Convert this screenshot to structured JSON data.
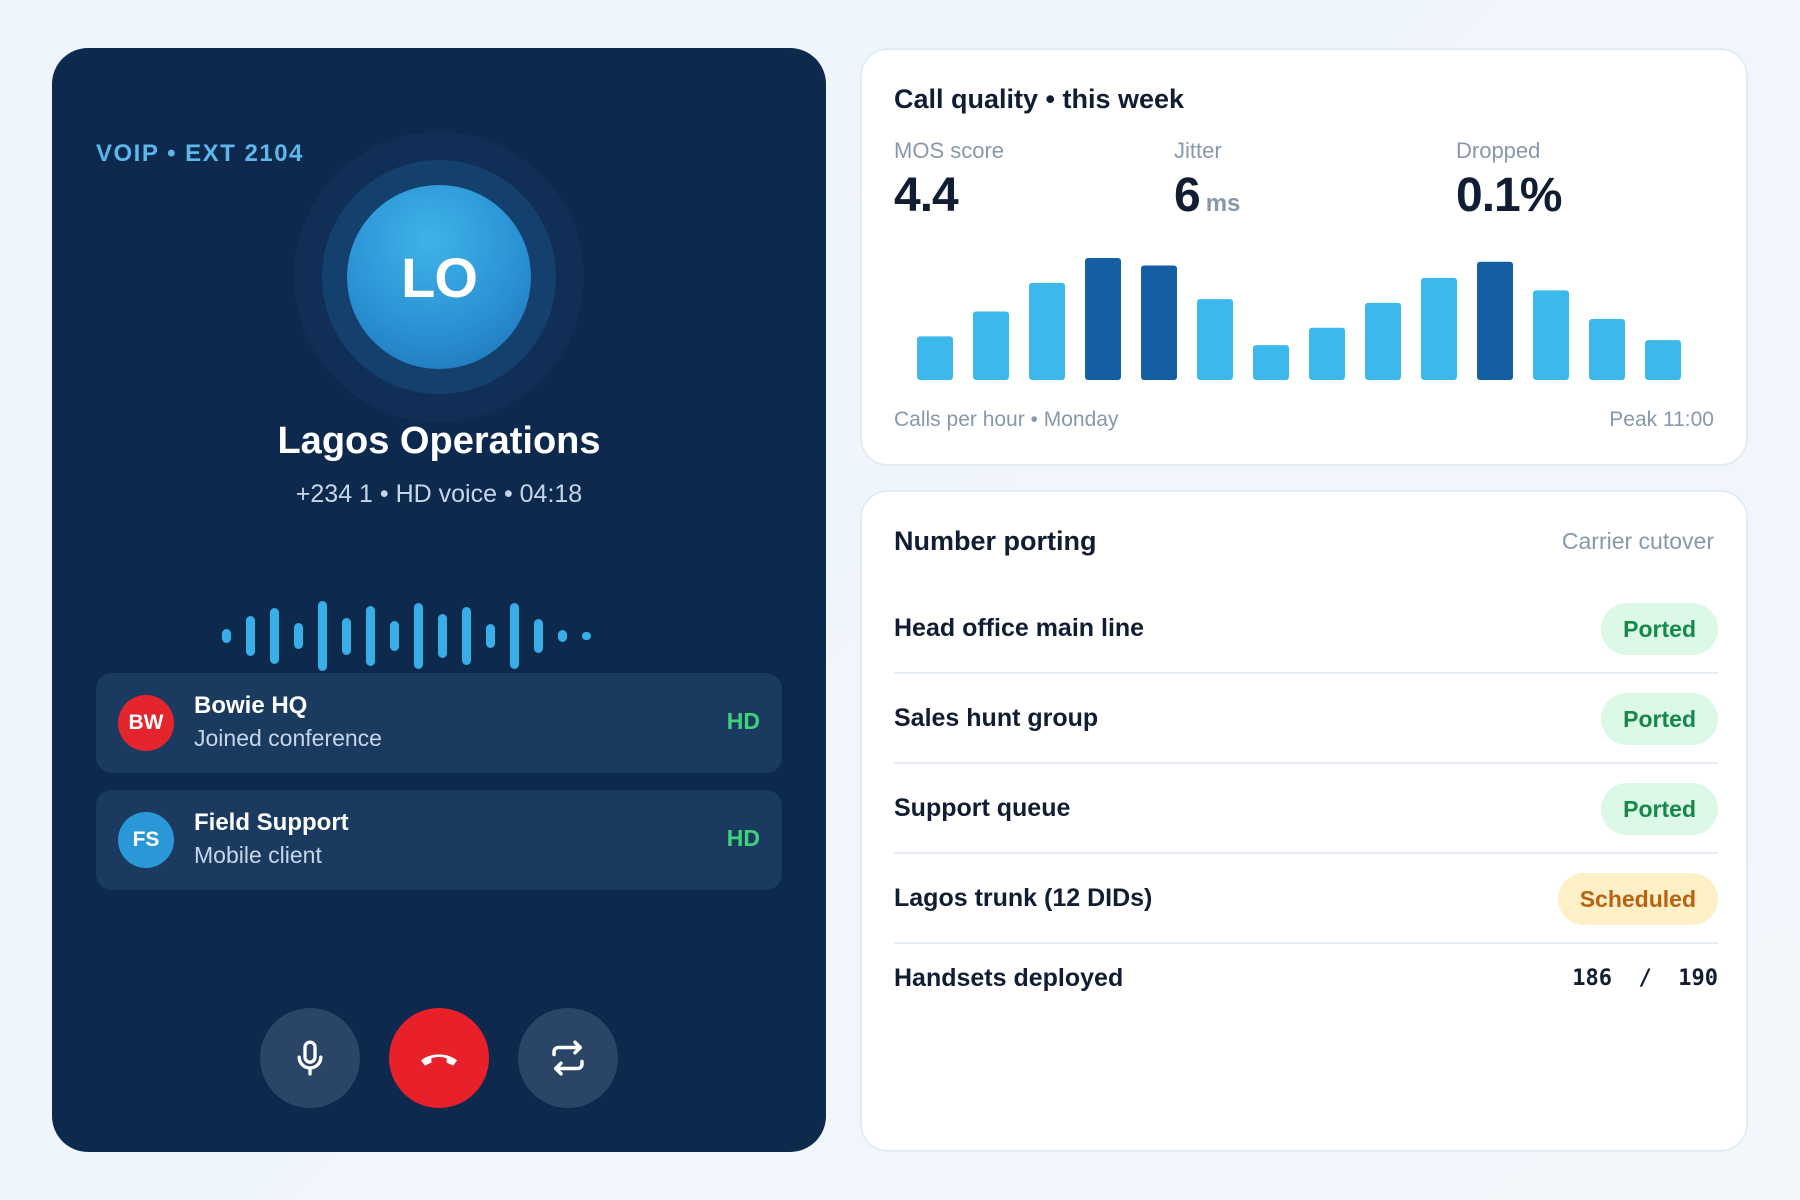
{
  "call": {
    "extension_label": "VOIP • EXT 2104",
    "avatar_initials": "LO",
    "caller_name": "Lagos Operations",
    "caller_meta": "+234 1 • HD voice • 04:18",
    "waveform_levels": [
      0.2,
      0.55,
      0.75,
      0.35,
      0.95,
      0.5,
      0.8,
      0.4,
      0.88,
      0.6,
      0.78,
      0.32,
      0.9,
      0.45,
      0.15,
      0.08
    ],
    "participants": [
      {
        "initials": "BW",
        "name": "Bowie HQ",
        "status": "Joined conference",
        "quality": "HD",
        "color": "#e4252d"
      },
      {
        "initials": "FS",
        "name": "Field Support",
        "status": "Mobile client",
        "quality": "HD",
        "color": "#2a98d6"
      }
    ],
    "controls": [
      {
        "name": "mute-button",
        "icon": "microphone-icon"
      },
      {
        "name": "hang-up-button",
        "icon": "phone-hang-up-icon"
      },
      {
        "name": "transfer-button",
        "icon": "transfer-arrows-icon"
      }
    ]
  },
  "quality": {
    "title": "Call quality • this week",
    "stats": [
      {
        "label": "MOS score",
        "value": "4.4",
        "unit": ""
      },
      {
        "label": "Jitter",
        "value": "6",
        "unit": "ms"
      },
      {
        "label": "Dropped",
        "value": "0.1%",
        "unit": ""
      }
    ],
    "footer_left": "Calls per hour • Monday",
    "footer_right": "Peak 11:00"
  },
  "chart_data": {
    "type": "bar",
    "values": [
      3.5,
      5.5,
      7.8,
      9.8,
      9.2,
      6.5,
      2.8,
      4.2,
      6.2,
      8.2,
      9.5,
      7.2,
      4.9,
      3.2
    ],
    "highlight_indices": [
      3,
      4,
      10
    ],
    "colors": {
      "normal": "#3db8ea",
      "highlight": "#145ea3"
    },
    "xlabel": "Calls per hour • Monday",
    "annotation": "Peak 11:00"
  },
  "porting": {
    "title": "Number porting",
    "subtitle": "Carrier cutover",
    "rows": [
      {
        "label": "Head office main line",
        "status": "Ported",
        "kind": "ok"
      },
      {
        "label": "Sales hunt group",
        "status": "Ported",
        "kind": "ok"
      },
      {
        "label": "Support queue",
        "status": "Ported",
        "kind": "ok"
      },
      {
        "label": "Lagos trunk (12 DIDs)",
        "status": "Scheduled",
        "kind": "sched"
      }
    ],
    "handsets_label": "Handsets deployed",
    "handsets_value": "186  /  190"
  }
}
